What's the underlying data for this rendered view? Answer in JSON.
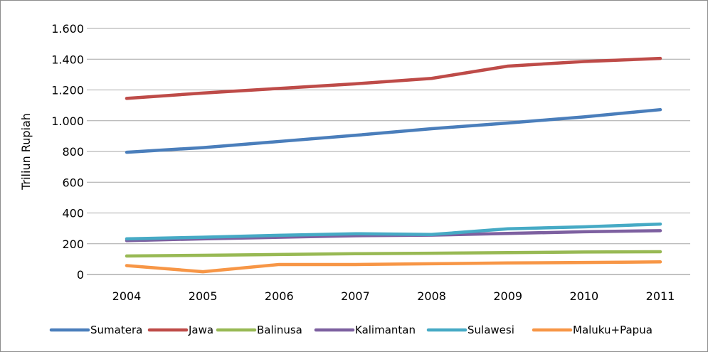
{
  "chart_data": {
    "type": "line",
    "title": "",
    "xlabel": "",
    "ylabel": "Triliun Rupiah",
    "categories": [
      "2004",
      "2005",
      "2006",
      "2007",
      "2008",
      "2009",
      "2010",
      "2011"
    ],
    "ylim": [
      0,
      1600
    ],
    "yticks": [
      0,
      200,
      400,
      600,
      800,
      1000,
      1200,
      1400,
      1600
    ],
    "ytick_labels": [
      "0",
      "200",
      "400",
      "600",
      "800",
      "1.000",
      "1.200",
      "1.400",
      "1.600"
    ],
    "grid": "horizontal",
    "legend_position": "bottom",
    "series": [
      {
        "name": "Sumatera",
        "color": "#4a7ebb",
        "values": [
          795,
          825,
          865,
          905,
          948,
          985,
          1025,
          1072
        ]
      },
      {
        "name": "Jawa",
        "color": "#be4b48",
        "values": [
          1145,
          1180,
          1210,
          1240,
          1275,
          1355,
          1385,
          1405
        ]
      },
      {
        "name": "Balinusa",
        "color": "#98b954",
        "values": [
          120,
          125,
          130,
          135,
          138,
          142,
          146,
          148
        ]
      },
      {
        "name": "Kalimantan",
        "color": "#7d60a0",
        "values": [
          220,
          232,
          242,
          252,
          256,
          267,
          278,
          285
        ]
      },
      {
        "name": "Sulawesi",
        "color": "#46aac5",
        "values": [
          232,
          242,
          255,
          265,
          260,
          297,
          310,
          328
        ]
      },
      {
        "name": "Maluku+Papua",
        "color": "#f79646",
        "values": [
          58,
          18,
          65,
          65,
          70,
          75,
          78,
          82
        ]
      }
    ]
  }
}
